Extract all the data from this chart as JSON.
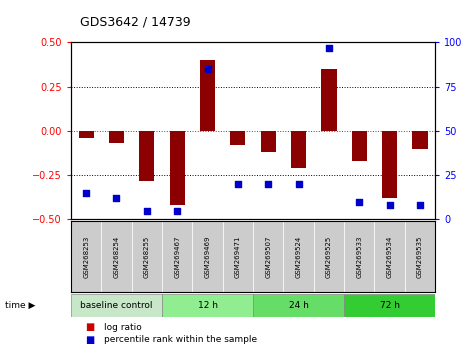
{
  "title": "GDS3642 / 14739",
  "samples": [
    "GSM268253",
    "GSM268254",
    "GSM268255",
    "GSM269467",
    "GSM269469",
    "GSM269471",
    "GSM269507",
    "GSM269524",
    "GSM269525",
    "GSM269533",
    "GSM269534",
    "GSM269535"
  ],
  "log_ratio": [
    -0.04,
    -0.07,
    -0.28,
    -0.42,
    0.4,
    -0.08,
    -0.12,
    -0.21,
    0.35,
    -0.17,
    -0.38,
    -0.1
  ],
  "percentile_rank": [
    15,
    12,
    5,
    5,
    85,
    20,
    20,
    20,
    97,
    10,
    8,
    8
  ],
  "groups": [
    {
      "label": "baseline control",
      "start": 0,
      "end": 3,
      "color": "#c8e6c8"
    },
    {
      "label": "12 h",
      "start": 3,
      "end": 6,
      "color": "#90ee90"
    },
    {
      "label": "24 h",
      "start": 6,
      "end": 9,
      "color": "#66dd66"
    },
    {
      "label": "72 h",
      "start": 9,
      "end": 12,
      "color": "#33cc33"
    }
  ],
  "ylim_left": [
    -0.5,
    0.5
  ],
  "ylim_right": [
    0,
    100
  ],
  "bar_color": "#8B0000",
  "dot_color": "#0000CC",
  "sample_bg": "#cccccc",
  "legend_bar_color": "#cc0000",
  "legend_dot_color": "#0000cc"
}
